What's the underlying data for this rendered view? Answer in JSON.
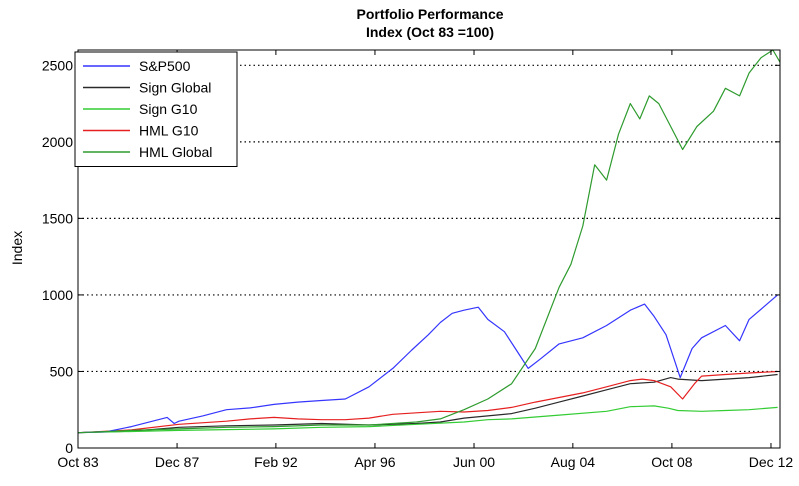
{
  "chart_data": {
    "type": "line",
    "title": "Portfolio Performance",
    "subtitle": "Index (Oct 83 =100)",
    "xlabel": "",
    "ylabel": "Index",
    "xlim": [
      1983.75,
      2013.3
    ],
    "ylim": [
      0,
      2600
    ],
    "yticks": [
      0,
      500,
      1000,
      1500,
      2000,
      2500
    ],
    "xticks": [
      {
        "label": "Oct 83",
        "value": 1983.75
      },
      {
        "label": "Dec 87",
        "value": 1987.92
      },
      {
        "label": "Feb 92",
        "value": 1992.08
      },
      {
        "label": "Apr 96",
        "value": 1996.25
      },
      {
        "label": "Jun 00",
        "value": 2000.42
      },
      {
        "label": "Aug 04",
        "value": 2004.58
      },
      {
        "label": "Oct 08",
        "value": 2008.75
      },
      {
        "label": "Dec 12",
        "value": 2012.92
      }
    ],
    "grid": "horizontal-dotted",
    "legend_position": "top-left",
    "series": [
      {
        "name": "S&P500",
        "color": "#3535ff",
        "points": [
          [
            1983.75,
            100
          ],
          [
            1985,
            108
          ],
          [
            1986,
            140
          ],
          [
            1987.5,
            200
          ],
          [
            1987.8,
            160
          ],
          [
            1988,
            175
          ],
          [
            1989,
            210
          ],
          [
            1990,
            250
          ],
          [
            1991,
            262
          ],
          [
            1992,
            285
          ],
          [
            1993,
            300
          ],
          [
            1994,
            310
          ],
          [
            1995,
            320
          ],
          [
            1996,
            400
          ],
          [
            1997,
            520
          ],
          [
            1997.8,
            640
          ],
          [
            1998.5,
            740
          ],
          [
            1999,
            820
          ],
          [
            1999.5,
            880
          ],
          [
            2000,
            900
          ],
          [
            2000.6,
            920
          ],
          [
            2001,
            840
          ],
          [
            2001.7,
            760
          ],
          [
            2002.2,
            640
          ],
          [
            2002.7,
            520
          ],
          [
            2003.2,
            580
          ],
          [
            2004,
            680
          ],
          [
            2005,
            720
          ],
          [
            2006,
            800
          ],
          [
            2007,
            900
          ],
          [
            2007.6,
            940
          ],
          [
            2008,
            860
          ],
          [
            2008.5,
            740
          ],
          [
            2009.1,
            460
          ],
          [
            2009.6,
            650
          ],
          [
            2010,
            720
          ],
          [
            2011,
            800
          ],
          [
            2011.6,
            700
          ],
          [
            2012,
            840
          ],
          [
            2012.6,
            920
          ],
          [
            2013.2,
            1000
          ]
        ]
      },
      {
        "name": "Sign Global",
        "color": "#2a2a2a",
        "points": [
          [
            1983.75,
            100
          ],
          [
            1986,
            110
          ],
          [
            1988,
            135
          ],
          [
            1990,
            145
          ],
          [
            1992,
            150
          ],
          [
            1994,
            160
          ],
          [
            1996,
            150
          ],
          [
            1998,
            160
          ],
          [
            1999,
            170
          ],
          [
            2000,
            195
          ],
          [
            2001,
            210
          ],
          [
            2002,
            225
          ],
          [
            2003,
            260
          ],
          [
            2004,
            300
          ],
          [
            2005,
            340
          ],
          [
            2006,
            380
          ],
          [
            2007,
            420
          ],
          [
            2008,
            430
          ],
          [
            2008.7,
            460
          ],
          [
            2009,
            450
          ],
          [
            2010,
            440
          ],
          [
            2011,
            450
          ],
          [
            2012,
            460
          ],
          [
            2013.2,
            480
          ]
        ]
      },
      {
        "name": "Sign G10",
        "color": "#33cc33",
        "points": [
          [
            1983.75,
            100
          ],
          [
            1986,
            108
          ],
          [
            1988,
            115
          ],
          [
            1990,
            120
          ],
          [
            1992,
            125
          ],
          [
            1994,
            135
          ],
          [
            1996,
            140
          ],
          [
            1998,
            155
          ],
          [
            2000,
            170
          ],
          [
            2001,
            185
          ],
          [
            2002,
            190
          ],
          [
            2004,
            215
          ],
          [
            2006,
            240
          ],
          [
            2007,
            270
          ],
          [
            2008,
            275
          ],
          [
            2008.6,
            260
          ],
          [
            2009,
            245
          ],
          [
            2010,
            240
          ],
          [
            2011,
            245
          ],
          [
            2012,
            250
          ],
          [
            2013.2,
            265
          ]
        ]
      },
      {
        "name": "HML G10",
        "color": "#e62020",
        "points": [
          [
            1983.75,
            100
          ],
          [
            1986,
            118
          ],
          [
            1988,
            155
          ],
          [
            1990,
            175
          ],
          [
            1991,
            190
          ],
          [
            1992,
            200
          ],
          [
            1993,
            190
          ],
          [
            1994,
            185
          ],
          [
            1995,
            185
          ],
          [
            1996,
            195
          ],
          [
            1997,
            220
          ],
          [
            1998,
            230
          ],
          [
            1999,
            240
          ],
          [
            2000,
            235
          ],
          [
            2001,
            245
          ],
          [
            2002,
            265
          ],
          [
            2003,
            300
          ],
          [
            2004,
            330
          ],
          [
            2005,
            360
          ],
          [
            2006,
            400
          ],
          [
            2007,
            440
          ],
          [
            2007.5,
            450
          ],
          [
            2008,
            440
          ],
          [
            2008.7,
            400
          ],
          [
            2009.2,
            320
          ],
          [
            2009.7,
            420
          ],
          [
            2010,
            470
          ],
          [
            2011,
            480
          ],
          [
            2012,
            490
          ],
          [
            2013.2,
            500
          ]
        ]
      },
      {
        "name": "HML Global",
        "color": "#2e9b2e",
        "points": [
          [
            1983.75,
            100
          ],
          [
            1986,
            115
          ],
          [
            1988,
            125
          ],
          [
            1990,
            135
          ],
          [
            1992,
            140
          ],
          [
            1994,
            150
          ],
          [
            1996,
            150
          ],
          [
            1998,
            170
          ],
          [
            1999,
            190
          ],
          [
            2000,
            250
          ],
          [
            2001,
            320
          ],
          [
            2002,
            420
          ],
          [
            2003,
            650
          ],
          [
            2004,
            1050
          ],
          [
            2004.5,
            1200
          ],
          [
            2005,
            1450
          ],
          [
            2005.5,
            1850
          ],
          [
            2006,
            1750
          ],
          [
            2006.5,
            2050
          ],
          [
            2007,
            2250
          ],
          [
            2007.4,
            2150
          ],
          [
            2007.8,
            2300
          ],
          [
            2008.2,
            2250
          ],
          [
            2008.7,
            2100
          ],
          [
            2009.2,
            1950
          ],
          [
            2009.8,
            2100
          ],
          [
            2010.5,
            2200
          ],
          [
            2011,
            2350
          ],
          [
            2011.6,
            2300
          ],
          [
            2012,
            2450
          ],
          [
            2012.5,
            2550
          ],
          [
            2013.0,
            2600
          ],
          [
            2013.3,
            2520
          ]
        ]
      }
    ]
  }
}
